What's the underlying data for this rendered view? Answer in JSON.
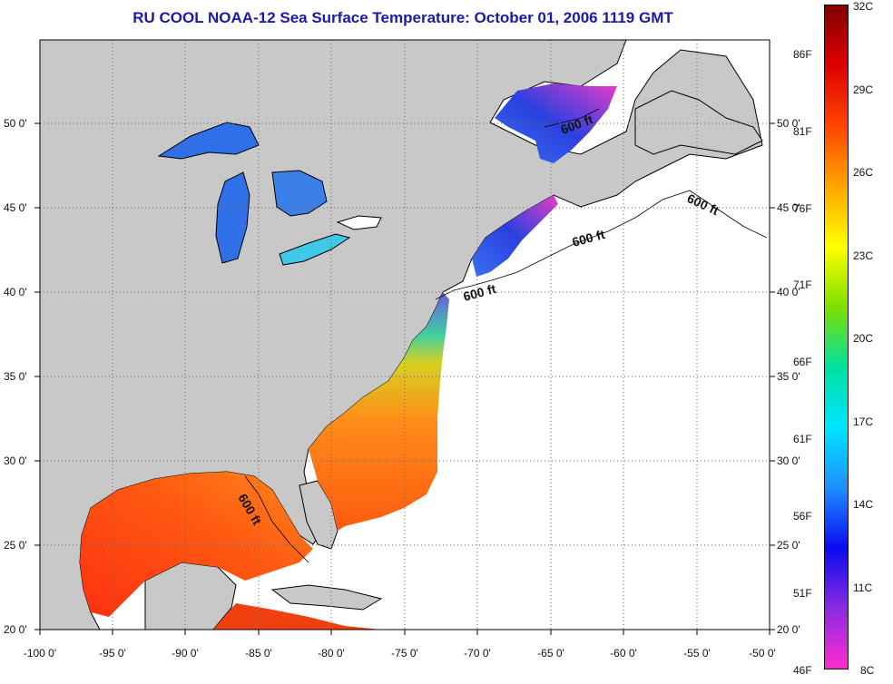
{
  "title": "RU COOL  NOAA-12  Sea Surface Temperature:  October 01, 2006 1119 GMT",
  "longitude_labels": [
    "-100 0'",
    "-95 0'",
    "-90 0'",
    "-85 0'",
    "-80 0'",
    "-75 0'",
    "-70 0'",
    "-65 0'",
    "-60 0'",
    "-55 0'",
    "-50 0'"
  ],
  "latitude_labels": [
    "50 0'",
    "45 0'",
    "40 0'",
    "35 0'",
    "30 0'",
    "25 0'",
    "20 0'"
  ],
  "contour_label": "600 ft",
  "colorbar": {
    "fahrenheit_labels": [
      "86F",
      "81F",
      "76F",
      "71F",
      "66F",
      "61F",
      "56F",
      "51F",
      "46F"
    ],
    "celsius_labels": [
      "32C",
      "29C",
      "26C",
      "23C",
      "20C",
      "17C",
      "14C",
      "11C",
      "8C"
    ],
    "colors": [
      "#ff2bd0",
      "#8a2be2",
      "#0a0af0",
      "#1e90ff",
      "#00e5ff",
      "#00e0a0",
      "#7ee000",
      "#ffff00",
      "#ffa500",
      "#ff4500",
      "#e00000",
      "#800000"
    ]
  },
  "colors": {
    "land": "#c8c8c8",
    "ocean_no_data": "#ffffff",
    "title": "#1a1aa8",
    "gulf_sst": "#f43a12",
    "lake_sst": "#2f6fe8"
  }
}
